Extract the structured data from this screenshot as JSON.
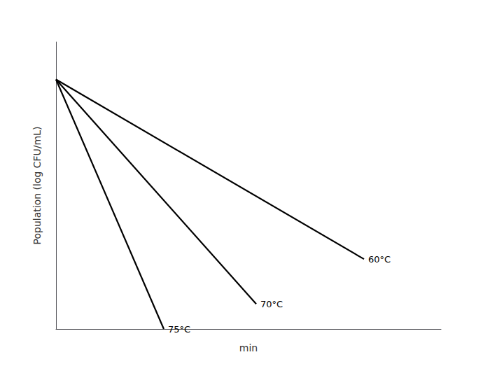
{
  "chart_data": {
    "type": "line",
    "xlabel": "min",
    "ylabel": "Population (log CFU/mL)",
    "series": [
      {
        "name": "60°C",
        "color": "#000000",
        "x": [
          0,
          1.0
        ],
        "values": [
          1.0,
          0.28
        ]
      },
      {
        "name": "70°C",
        "color": "#000000",
        "x": [
          0,
          0.65
        ],
        "values": [
          1.0,
          0.1
        ]
      },
      {
        "name": "75°C",
        "color": "#000000",
        "x": [
          0,
          0.35
        ],
        "values": [
          1.0,
          0.0
        ]
      }
    ],
    "xlim": [
      0,
      1.25
    ],
    "ylim": [
      0,
      1.15
    ],
    "xticks": [],
    "yticks": [],
    "tick_labels": false,
    "grid": false,
    "legend": false
  }
}
